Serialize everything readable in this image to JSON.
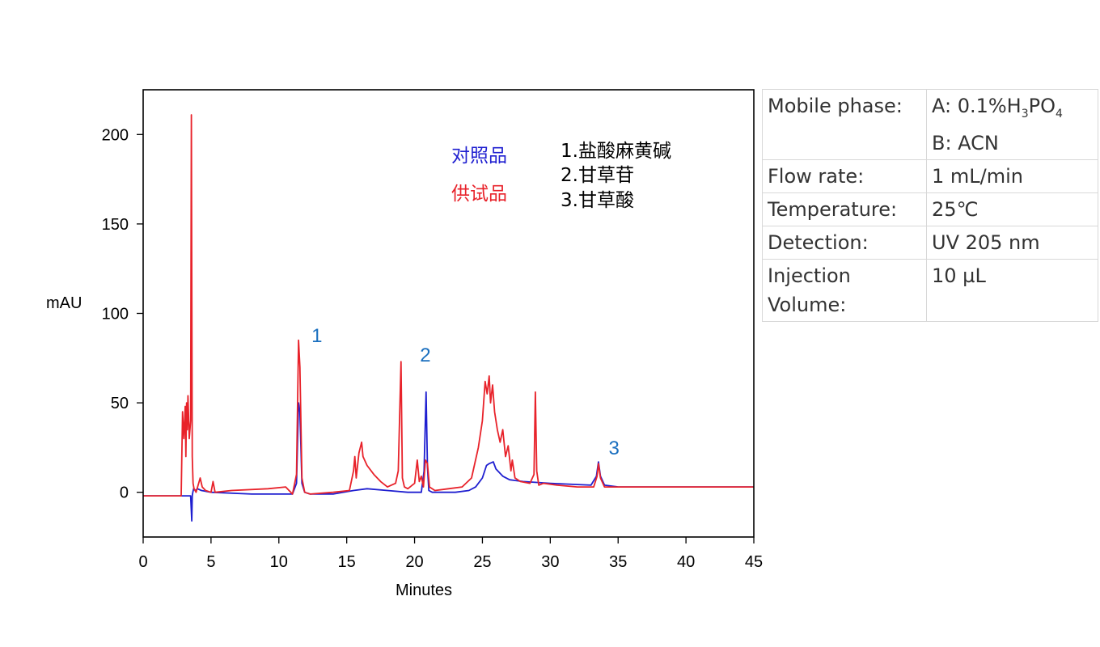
{
  "chart_data": {
    "type": "line",
    "xlabel": "Minutes",
    "ylabel": "mAU",
    "xlim": [
      0,
      45
    ],
    "ylim": [
      -25,
      225
    ],
    "x_ticks": [
      0,
      5,
      10,
      15,
      20,
      25,
      30,
      35,
      40,
      45
    ],
    "y_ticks": [
      0,
      50,
      100,
      150,
      200
    ],
    "legend": [
      "对照品",
      "供试品"
    ],
    "compounds": [
      "1.盐酸麻黄碱",
      "2.甘草苷",
      "3.甘草酸"
    ],
    "peak_labels": [
      {
        "label": "1",
        "x": 12.8,
        "y": 84
      },
      {
        "label": "2",
        "x": 20.8,
        "y": 73
      },
      {
        "label": "3",
        "x": 34.7,
        "y": 21
      }
    ],
    "series": [
      {
        "name": "对照品",
        "color": "#1f1fd0",
        "x": [
          0,
          3.0,
          3.5,
          3.58,
          3.62,
          3.66,
          3.72,
          3.85,
          4.0,
          4.3,
          5.0,
          8.0,
          11.0,
          11.3,
          11.45,
          11.55,
          11.7,
          11.9,
          12.3,
          14.0,
          15.5,
          16.5,
          18.0,
          19.5,
          20.5,
          20.7,
          20.85,
          20.95,
          21.05,
          21.3,
          22.0,
          23.0,
          24.0,
          24.5,
          25.0,
          25.3,
          25.5,
          25.8,
          26.0,
          26.5,
          27.0,
          28.0,
          30.0,
          33.0,
          33.4,
          33.55,
          33.7,
          34.0,
          35.0,
          40.0,
          45.0
        ],
        "y": [
          -2,
          -2,
          -2,
          -16,
          -2,
          0,
          2,
          1,
          2,
          1,
          0,
          -1,
          -1,
          5,
          50,
          45,
          5,
          0,
          -1,
          -1,
          1,
          2,
          1,
          0,
          0,
          12,
          56,
          14,
          1,
          0,
          0,
          0,
          1,
          3,
          8,
          15,
          16,
          17,
          13,
          9,
          7,
          6,
          5,
          4,
          9,
          17,
          9,
          4,
          3,
          3,
          3
        ]
      },
      {
        "name": "供试品",
        "color": "#e8222a",
        "x": [
          0,
          2.8,
          2.9,
          3.0,
          3.1,
          3.15,
          3.2,
          3.25,
          3.3,
          3.4,
          3.5,
          3.55,
          3.62,
          3.68,
          3.75,
          3.9,
          4.2,
          4.35,
          4.6,
          5.0,
          5.15,
          5.3,
          6.5,
          9.2,
          10.5,
          11.0,
          11.3,
          11.45,
          11.55,
          11.7,
          11.9,
          12.3,
          14.0,
          15.2,
          15.5,
          15.6,
          15.7,
          15.9,
          16.1,
          16.2,
          16.5,
          17.0,
          17.5,
          18.0,
          18.6,
          18.8,
          19.0,
          19.1,
          19.25,
          19.5,
          20.0,
          20.2,
          20.35,
          20.5,
          20.65,
          20.8,
          20.95,
          21.1,
          21.5,
          22.5,
          23.5,
          24.2,
          24.7,
          25.0,
          25.2,
          25.35,
          25.5,
          25.6,
          25.75,
          25.9,
          26.1,
          26.3,
          26.5,
          26.7,
          26.9,
          27.1,
          27.2,
          27.4,
          27.8,
          28.5,
          28.8,
          28.9,
          29.0,
          29.15,
          29.5,
          30.5,
          32.0,
          33.2,
          33.45,
          33.55,
          33.7,
          34.0,
          35.0,
          40.0,
          45.0
        ],
        "y": [
          -2,
          -2,
          45,
          30,
          48,
          20,
          50,
          35,
          54,
          30,
          40,
          211,
          20,
          5,
          2,
          0,
          8,
          3,
          1,
          0,
          6,
          0,
          1,
          2,
          3,
          -1,
          10,
          85,
          70,
          8,
          0,
          -1,
          0,
          1,
          12,
          20,
          8,
          22,
          28,
          20,
          15,
          10,
          6,
          3,
          5,
          12,
          73,
          8,
          3,
          2,
          5,
          18,
          6,
          9,
          3,
          18,
          16,
          3,
          1,
          2,
          3,
          8,
          25,
          40,
          62,
          55,
          65,
          50,
          60,
          45,
          35,
          28,
          35,
          20,
          26,
          12,
          18,
          8,
          6,
          5,
          10,
          56,
          12,
          4,
          5,
          4,
          3,
          3,
          9,
          16,
          8,
          3,
          3,
          3,
          3
        ]
      }
    ]
  },
  "conditions": {
    "mobile_phase_label": "Mobile phase:",
    "mobile_phase_a_prefix": "A: 0.1%H",
    "mobile_phase_a_sub1": "3",
    "mobile_phase_a_mid": "PO",
    "mobile_phase_a_sub2": "4",
    "mobile_phase_b": "B: ACN",
    "flow_rate_label": "Flow rate:",
    "flow_rate_value": "1 mL/min",
    "temperature_label": "Temperature:",
    "temperature_value": "25℃",
    "detection_label": "Detection:",
    "detection_value": "UV 205 nm",
    "injection_label_1": "Injection",
    "injection_label_2": "Volume:",
    "injection_value": "10 µL"
  }
}
